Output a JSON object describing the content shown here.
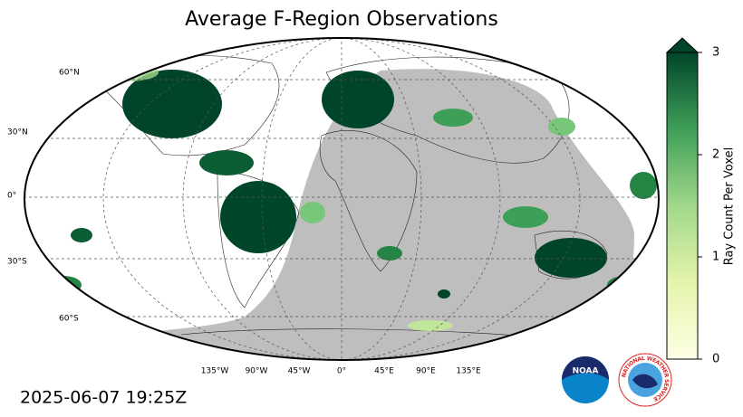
{
  "title": "Average F-Region Observations",
  "timestamp": "2025-06-07 19:25Z",
  "map": {
    "lat_labels": [
      "60°N",
      "30°N",
      "0°",
      "30°S",
      "60°S"
    ],
    "lon_labels": [
      "135°W",
      "90°W",
      "45°W",
      "0°",
      "45°E",
      "90°E",
      "135°E"
    ]
  },
  "colorbar": {
    "label": "Ray Count Per Voxel",
    "lim": [
      0,
      3
    ],
    "ticks": [
      0,
      1,
      2,
      3
    ]
  },
  "logos": {
    "noaa": "NOAA",
    "nws": "NATIONAL WEATHER SERVICE"
  }
}
